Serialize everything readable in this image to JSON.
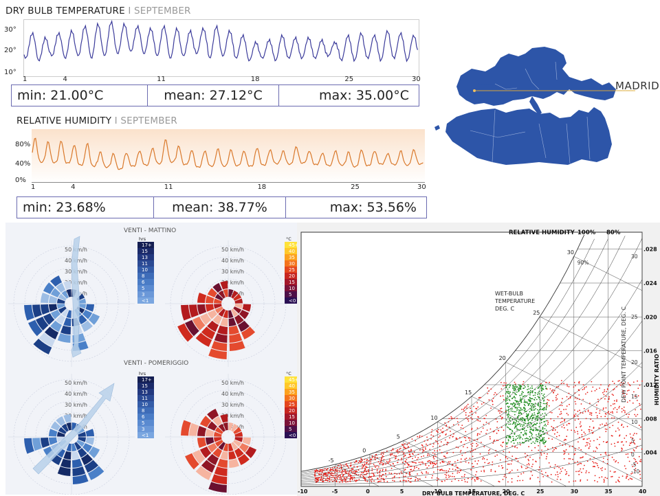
{
  "dry_bulb": {
    "title": "DRY BULB TEMPERATURE",
    "sep": " I ",
    "month": "SEPTEMBER",
    "y_ticks": [
      "30°",
      "20°",
      "10°"
    ],
    "x_ticks": [
      "1",
      "4",
      "11",
      "18",
      "25",
      "30"
    ],
    "stats": {
      "min": "min: 21.00°C",
      "mean": "mean: 27.12°C",
      "max": "max: 35.00°C"
    },
    "color": "#3a3a9a"
  },
  "humidity": {
    "title": "RELATIVE HUMIDITY",
    "sep": " I ",
    "month": "SEPTEMBER",
    "y_ticks": [
      "80%",
      "40%",
      "0%"
    ],
    "x_ticks": [
      "1",
      "4",
      "11",
      "18",
      "25",
      "30"
    ],
    "stats": {
      "min": "min: 23.68%",
      "mean": "mean: 38.77%",
      "max": "max: 53.56%"
    },
    "color": "#d9782a"
  },
  "map": {
    "label": "MADRID",
    "fill": "#2d55a8"
  },
  "wind": {
    "morning_title": "VENTI - MATTINO",
    "afternoon_title": "VENTI - POMERIGGIO",
    "ring_labels": [
      "50 km/h",
      "40 km/h",
      "30 km/h",
      "20 km/h",
      "10 km/h"
    ],
    "hrs_unit": "hrs",
    "hrs_scale": [
      "17+",
      "15",
      "13",
      "11",
      "10",
      "8",
      "6",
      "5",
      "3",
      "<1"
    ],
    "temp_unit": "°C",
    "temp_scale": [
      "45+",
      "40",
      "35",
      "30",
      "25",
      "20",
      "15",
      "10",
      "5",
      "<0"
    ]
  },
  "psychro": {
    "header": "RELATIVE HUMIDITY",
    "rh_labels": [
      "100%",
      "80%"
    ],
    "wb_label": [
      "WET-BULB",
      "TEMPERATURE",
      "DEG. C"
    ],
    "dew_label": "DEW POINT TEMPERATURE, DEG. C",
    "x_label": "DRY BULB TEMPERATURE, DEG. C",
    "y_label": "HUMIDITY RATIO",
    "x_ticks": [
      "-10",
      "-5",
      "0",
      "5",
      "10",
      "15",
      "20",
      "25",
      "30",
      "35",
      "40"
    ],
    "y_ticks": [
      ".028",
      ".024",
      ".020",
      ".016",
      ".012",
      ".008",
      ".004"
    ],
    "wb_ticks": [
      "-5",
      "0",
      "5",
      "10",
      "15",
      "20",
      "25",
      "30"
    ],
    "dew_ticks": [
      "30",
      "25",
      "20",
      "15",
      "10",
      "5",
      "0",
      "-5",
      "-10"
    ],
    "rh_inline": "90%",
    "colors": {
      "all_hours": "#e8201a",
      "comfort": "#1a8a1a"
    }
  },
  "chart_data": [
    {
      "type": "line",
      "title": "DRY BULB TEMPERATURE I SEPTEMBER",
      "xlabel": "",
      "ylabel": "",
      "xlim": [
        1,
        30
      ],
      "ylim": [
        10,
        33
      ],
      "daily_min": [
        17,
        16,
        18,
        17,
        18,
        17,
        18,
        19,
        20,
        19,
        18,
        17,
        18,
        19,
        17,
        18,
        17,
        16,
        17,
        16,
        17,
        17,
        17,
        18,
        16,
        16,
        17,
        16,
        17,
        16
      ],
      "daily_max": [
        28,
        26,
        28,
        29,
        31,
        32,
        33,
        32,
        31,
        30,
        31,
        30,
        29,
        30,
        31,
        29,
        27,
        24,
        25,
        27,
        26,
        26,
        25,
        24,
        27,
        28,
        27,
        29,
        28,
        27
      ],
      "stats": {
        "min": 21.0,
        "mean": 27.12,
        "max": 35.0
      }
    },
    {
      "type": "line",
      "title": "RELATIVE HUMIDITY I SEPTEMBER",
      "xlabel": "",
      "ylabel": "",
      "xlim": [
        1,
        30
      ],
      "ylim": [
        0,
        100
      ],
      "daily_min": [
        38,
        37,
        36,
        32,
        30,
        28,
        24,
        30,
        32,
        35,
        38,
        33,
        28,
        30,
        30,
        31,
        30,
        32,
        35,
        34,
        36,
        33,
        31,
        32,
        29,
        31,
        34,
        33,
        32,
        34
      ],
      "daily_max": [
        85,
        78,
        80,
        72,
        75,
        58,
        55,
        56,
        60,
        65,
        82,
        70,
        62,
        60,
        64,
        62,
        60,
        66,
        62,
        60,
        68,
        60,
        56,
        60,
        58,
        62,
        60,
        55,
        60,
        62
      ],
      "stats": {
        "min": 23.68,
        "mean": 38.77,
        "max": 53.56
      }
    },
    {
      "type": "scatter",
      "title": "",
      "xlabel": "DRY BULB TEMPERATURE, DEG. C",
      "ylabel": "HUMIDITY RATIO",
      "xlim": [
        -10,
        40
      ],
      "ylim": [
        0,
        0.03
      ],
      "series": [
        {
          "name": "",
          "x_range": [
            -8,
            40
          ],
          "y_range": [
            0.0005,
            0.012
          ]
        },
        {
          "name": "",
          "x_range": [
            20,
            26
          ],
          "y_range": [
            0.005,
            0.012
          ]
        }
      ]
    }
  ]
}
